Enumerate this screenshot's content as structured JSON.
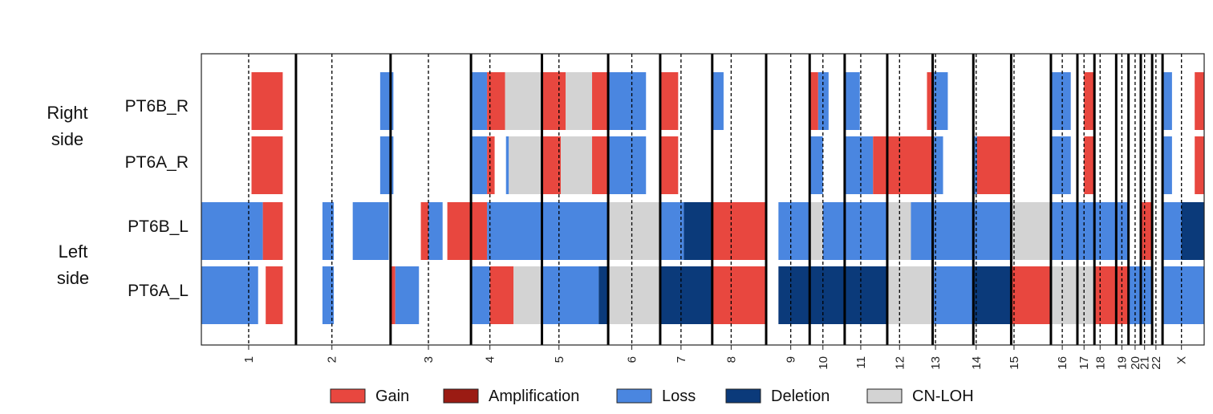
{
  "groups": [
    {
      "line1": "Right",
      "line2": "side"
    },
    {
      "line1": "Left",
      "line2": "side"
    }
  ],
  "colors": {
    "Gain": "#e8473f",
    "Amplification": "#9b1b13",
    "Loss": "#4a86e0",
    "Deletion": "#0b3a7a",
    "CN-LOH": "#d3d3d3"
  },
  "chart_data": {
    "type": "heatmap",
    "title": "",
    "xlabel": "",
    "ylabel": "",
    "samples": [
      "PT6B_R",
      "PT6A_R",
      "PT6B_L",
      "PT6A_L"
    ],
    "chromosomes": [
      {
        "name": "1",
        "start": 0,
        "centromere": 0.5,
        "end": 1.0
      },
      {
        "name": "2",
        "start": 1.0,
        "centromere": 1.38,
        "end": 2.0
      },
      {
        "name": "3",
        "start": 2.0,
        "centromere": 2.4,
        "end": 2.85
      },
      {
        "name": "4",
        "start": 2.85,
        "centromere": 3.05,
        "end": 3.6
      },
      {
        "name": "5",
        "start": 3.6,
        "centromere": 3.78,
        "end": 4.3
      },
      {
        "name": "6",
        "start": 4.3,
        "centromere": 4.55,
        "end": 4.85
      },
      {
        "name": "7",
        "start": 4.85,
        "centromere": 5.07,
        "end": 5.4
      },
      {
        "name": "8",
        "start": 5.4,
        "centromere": 5.6,
        "end": 5.97
      },
      {
        "name": "9",
        "start": 5.97,
        "centromere": 6.23,
        "end": 6.43
      },
      {
        "name": "10",
        "start": 6.43,
        "centromere": 6.57,
        "end": 6.8
      },
      {
        "name": "11",
        "start": 6.8,
        "centromere": 6.97,
        "end": 7.25
      },
      {
        "name": "12",
        "start": 7.25,
        "centromere": 7.38,
        "end": 7.73
      },
      {
        "name": "13",
        "start": 7.73,
        "centromere": 7.76,
        "end": 8.16
      },
      {
        "name": "14",
        "start": 8.16,
        "centromere": 8.19,
        "end": 8.56
      },
      {
        "name": "15",
        "start": 8.56,
        "centromere": 8.59,
        "end": 8.98
      },
      {
        "name": "16",
        "start": 8.98,
        "centromere": 9.1,
        "end": 9.26
      },
      {
        "name": "17",
        "start": 9.26,
        "centromere": 9.33,
        "end": 9.44
      },
      {
        "name": "18",
        "start": 9.44,
        "centromere": 9.5,
        "end": 9.67
      },
      {
        "name": "19",
        "start": 9.67,
        "centromere": 9.73,
        "end": 9.8
      },
      {
        "name": "20",
        "start": 9.8,
        "centromere": 9.87,
        "end": 9.93
      },
      {
        "name": "21",
        "start": 9.93,
        "centromere": 9.97,
        "end": 10.05
      },
      {
        "name": "22",
        "start": 10.05,
        "centromere": 10.09,
        "end": 10.16
      },
      {
        "name": "X",
        "start": 10.16,
        "centromere": 10.36,
        "end": 10.6
      }
    ],
    "legend": [
      "Gain",
      "Amplification",
      "Loss",
      "Deletion",
      "CN-LOH"
    ],
    "segments": [
      {
        "sample": "PT6B_R",
        "type": "Gain",
        "start": 0.53,
        "end": 0.86
      },
      {
        "sample": "PT6B_R",
        "type": "Loss",
        "start": 1.89,
        "end": 2.03
      },
      {
        "sample": "PT6B_R",
        "type": "Loss",
        "start": 2.85,
        "end": 3.02
      },
      {
        "sample": "PT6B_R",
        "type": "Gain",
        "start": 3.02,
        "end": 3.21
      },
      {
        "sample": "PT6B_R",
        "type": "CN-LOH",
        "start": 3.21,
        "end": 3.6
      },
      {
        "sample": "PT6B_R",
        "type": "Gain",
        "start": 3.6,
        "end": 3.85
      },
      {
        "sample": "PT6B_R",
        "type": "CN-LOH",
        "start": 3.85,
        "end": 4.13
      },
      {
        "sample": "PT6B_R",
        "type": "Gain",
        "start": 4.13,
        "end": 4.3
      },
      {
        "sample": "PT6B_R",
        "type": "Loss",
        "start": 4.3,
        "end": 4.7
      },
      {
        "sample": "PT6B_R",
        "type": "Gain",
        "start": 4.85,
        "end": 5.04
      },
      {
        "sample": "PT6B_R",
        "type": "Loss",
        "start": 5.4,
        "end": 5.52
      },
      {
        "sample": "PT6B_R",
        "type": "Gain",
        "start": 6.43,
        "end": 6.52
      },
      {
        "sample": "PT6B_R",
        "type": "Loss",
        "start": 6.52,
        "end": 6.63
      },
      {
        "sample": "PT6B_R",
        "type": "Loss",
        "start": 6.8,
        "end": 6.96
      },
      {
        "sample": "PT6B_R",
        "type": "Gain",
        "start": 7.67,
        "end": 7.73
      },
      {
        "sample": "PT6B_R",
        "type": "Loss",
        "start": 7.73,
        "end": 7.89
      },
      {
        "sample": "PT6B_R",
        "type": "Loss",
        "start": 8.98,
        "end": 9.19
      },
      {
        "sample": "PT6B_R",
        "type": "Gain",
        "start": 9.33,
        "end": 9.44
      },
      {
        "sample": "PT6B_R",
        "type": "Loss",
        "start": 10.16,
        "end": 10.26
      },
      {
        "sample": "PT6B_R",
        "type": "Gain",
        "start": 10.5,
        "end": 10.6
      },
      {
        "sample": "PT6A_R",
        "type": "Gain",
        "start": 0.53,
        "end": 0.86
      },
      {
        "sample": "PT6A_R",
        "type": "Loss",
        "start": 1.89,
        "end": 2.03
      },
      {
        "sample": "PT6A_R",
        "type": "Loss",
        "start": 2.85,
        "end": 3.02
      },
      {
        "sample": "PT6A_R",
        "type": "Gain",
        "start": 3.02,
        "end": 3.1
      },
      {
        "sample": "PT6A_R",
        "type": "Loss",
        "start": 3.22,
        "end": 3.25
      },
      {
        "sample": "PT6A_R",
        "type": "CN-LOH",
        "start": 3.25,
        "end": 3.6
      },
      {
        "sample": "PT6A_R",
        "type": "Gain",
        "start": 3.6,
        "end": 3.8
      },
      {
        "sample": "PT6A_R",
        "type": "CN-LOH",
        "start": 3.8,
        "end": 4.13
      },
      {
        "sample": "PT6A_R",
        "type": "Gain",
        "start": 4.13,
        "end": 4.3
      },
      {
        "sample": "PT6A_R",
        "type": "Loss",
        "start": 4.3,
        "end": 4.7
      },
      {
        "sample": "PT6A_R",
        "type": "Gain",
        "start": 4.85,
        "end": 5.04
      },
      {
        "sample": "PT6A_R",
        "type": "Loss",
        "start": 6.43,
        "end": 6.57
      },
      {
        "sample": "PT6A_R",
        "type": "Loss",
        "start": 6.8,
        "end": 7.1
      },
      {
        "sample": "PT6A_R",
        "type": "Gain",
        "start": 7.1,
        "end": 7.73
      },
      {
        "sample": "PT6A_R",
        "type": "Loss",
        "start": 7.73,
        "end": 7.84
      },
      {
        "sample": "PT6A_R",
        "type": "Loss",
        "start": 8.16,
        "end": 8.22
      },
      {
        "sample": "PT6A_R",
        "type": "Gain",
        "start": 8.2,
        "end": 8.56
      },
      {
        "sample": "PT6A_R",
        "type": "Loss",
        "start": 8.98,
        "end": 9.19
      },
      {
        "sample": "PT6A_R",
        "type": "Gain",
        "start": 9.33,
        "end": 9.44
      },
      {
        "sample": "PT6A_R",
        "type": "Loss",
        "start": 10.16,
        "end": 10.26
      },
      {
        "sample": "PT6A_R",
        "type": "Gain",
        "start": 10.5,
        "end": 10.6
      },
      {
        "sample": "PT6B_L",
        "type": "Loss",
        "start": 0.0,
        "end": 0.65
      },
      {
        "sample": "PT6B_L",
        "type": "Gain",
        "start": 0.65,
        "end": 0.86
      },
      {
        "sample": "PT6B_L",
        "type": "Loss",
        "start": 1.28,
        "end": 1.4
      },
      {
        "sample": "PT6B_L",
        "type": "Loss",
        "start": 1.6,
        "end": 1.98
      },
      {
        "sample": "PT6B_L",
        "type": "Gain",
        "start": 2.32,
        "end": 2.4
      },
      {
        "sample": "PT6B_L",
        "type": "Loss",
        "start": 2.4,
        "end": 2.55
      },
      {
        "sample": "PT6B_L",
        "type": "Gain",
        "start": 2.6,
        "end": 3.02
      },
      {
        "sample": "PT6B_L",
        "type": "Loss",
        "start": 3.02,
        "end": 3.6
      },
      {
        "sample": "PT6B_L",
        "type": "Loss",
        "start": 3.6,
        "end": 4.3
      },
      {
        "sample": "PT6B_L",
        "type": "CN-LOH",
        "start": 4.3,
        "end": 4.85
      },
      {
        "sample": "PT6B_L",
        "type": "Loss",
        "start": 4.85,
        "end": 5.1
      },
      {
        "sample": "PT6B_L",
        "type": "Deletion",
        "start": 5.1,
        "end": 5.4
      },
      {
        "sample": "PT6B_L",
        "type": "Gain",
        "start": 5.4,
        "end": 5.97
      },
      {
        "sample": "PT6B_L",
        "type": "Loss",
        "start": 6.1,
        "end": 6.43
      },
      {
        "sample": "PT6B_L",
        "type": "CN-LOH",
        "start": 6.43,
        "end": 6.57
      },
      {
        "sample": "PT6B_L",
        "type": "Loss",
        "start": 6.57,
        "end": 6.8
      },
      {
        "sample": "PT6B_L",
        "type": "Loss",
        "start": 6.8,
        "end": 7.25
      },
      {
        "sample": "PT6B_L",
        "type": "CN-LOH",
        "start": 7.25,
        "end": 7.5
      },
      {
        "sample": "PT6B_L",
        "type": "Loss",
        "start": 7.5,
        "end": 7.73
      },
      {
        "sample": "PT6B_L",
        "type": "Loss",
        "start": 7.73,
        "end": 8.16
      },
      {
        "sample": "PT6B_L",
        "type": "Loss",
        "start": 8.16,
        "end": 8.56
      },
      {
        "sample": "PT6B_L",
        "type": "CN-LOH",
        "start": 8.56,
        "end": 8.98
      },
      {
        "sample": "PT6B_L",
        "type": "Loss",
        "start": 8.98,
        "end": 9.44
      },
      {
        "sample": "PT6B_L",
        "type": "Loss",
        "start": 9.44,
        "end": 9.8
      },
      {
        "sample": "PT6B_L",
        "type": "Gain",
        "start": 9.93,
        "end": 10.05
      },
      {
        "sample": "PT6B_L",
        "type": "Loss",
        "start": 10.16,
        "end": 10.36
      },
      {
        "sample": "PT6B_L",
        "type": "Deletion",
        "start": 10.36,
        "end": 10.6
      },
      {
        "sample": "PT6A_L",
        "type": "Loss",
        "start": 0.0,
        "end": 0.6
      },
      {
        "sample": "PT6A_L",
        "type": "Gain",
        "start": 0.68,
        "end": 0.86
      },
      {
        "sample": "PT6A_L",
        "type": "Loss",
        "start": 1.28,
        "end": 1.4
      },
      {
        "sample": "PT6A_L",
        "type": "Gain",
        "start": 2.0,
        "end": 2.05
      },
      {
        "sample": "PT6A_L",
        "type": "Loss",
        "start": 2.05,
        "end": 2.3
      },
      {
        "sample": "PT6A_L",
        "type": "Loss",
        "start": 2.85,
        "end": 3.05
      },
      {
        "sample": "PT6A_L",
        "type": "Gain",
        "start": 3.05,
        "end": 3.3
      },
      {
        "sample": "PT6A_L",
        "type": "CN-LOH",
        "start": 3.3,
        "end": 3.6
      },
      {
        "sample": "PT6A_L",
        "type": "Loss",
        "start": 3.6,
        "end": 4.2
      },
      {
        "sample": "PT6A_L",
        "type": "Deletion",
        "start": 4.2,
        "end": 4.3
      },
      {
        "sample": "PT6A_L",
        "type": "CN-LOH",
        "start": 4.3,
        "end": 4.85
      },
      {
        "sample": "PT6A_L",
        "type": "Deletion",
        "start": 4.85,
        "end": 5.4
      },
      {
        "sample": "PT6A_L",
        "type": "Gain",
        "start": 5.4,
        "end": 5.97
      },
      {
        "sample": "PT6A_L",
        "type": "Deletion",
        "start": 6.1,
        "end": 6.8
      },
      {
        "sample": "PT6A_L",
        "type": "Deletion",
        "start": 6.8,
        "end": 7.25
      },
      {
        "sample": "PT6A_L",
        "type": "CN-LOH",
        "start": 7.25,
        "end": 7.73
      },
      {
        "sample": "PT6A_L",
        "type": "Loss",
        "start": 7.73,
        "end": 8.16
      },
      {
        "sample": "PT6A_L",
        "type": "Deletion",
        "start": 8.16,
        "end": 8.56
      },
      {
        "sample": "PT6A_L",
        "type": "Gain",
        "start": 8.56,
        "end": 8.98
      },
      {
        "sample": "PT6A_L",
        "type": "CN-LOH",
        "start": 8.98,
        "end": 9.44
      },
      {
        "sample": "PT6A_L",
        "type": "Gain",
        "start": 9.44,
        "end": 9.8
      },
      {
        "sample": "PT6A_L",
        "type": "Loss",
        "start": 9.8,
        "end": 10.05
      },
      {
        "sample": "PT6A_L",
        "type": "Loss",
        "start": 10.16,
        "end": 10.6
      }
    ]
  }
}
